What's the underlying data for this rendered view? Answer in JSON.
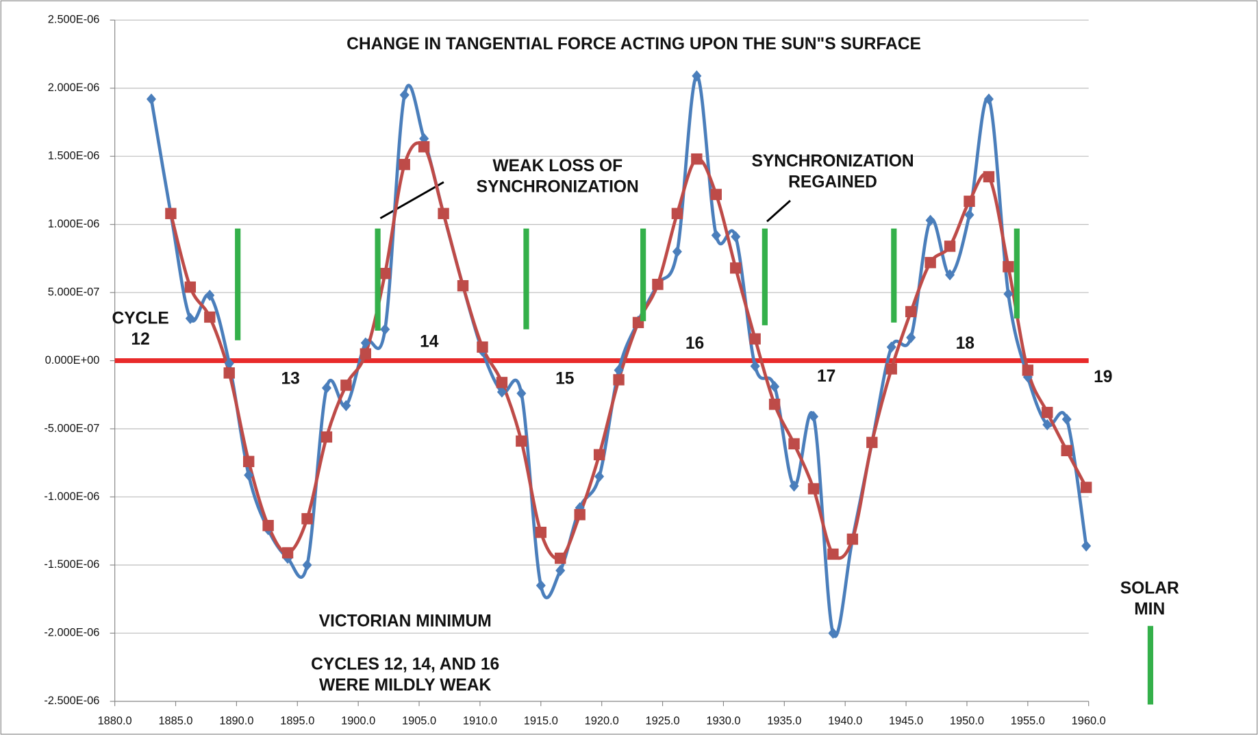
{
  "chart_data": {
    "type": "line",
    "title": "CHANGE IN TANGENTIAL FORCE ACTING UPON THE SUN\"S SURFACE",
    "x": [
      1883.0,
      1884.6,
      1886.2,
      1887.8,
      1889.4,
      1891.0,
      1892.6,
      1894.2,
      1895.8,
      1897.4,
      1899.0,
      1900.6,
      1902.2,
      1903.8,
      1905.4,
      1907.0,
      1908.6,
      1910.2,
      1911.8,
      1913.4,
      1915.0,
      1916.6,
      1918.2,
      1919.8,
      1921.4,
      1923.0,
      1924.6,
      1926.2,
      1927.8,
      1929.4,
      1931.0,
      1932.6,
      1934.2,
      1935.8,
      1937.4,
      1939.0,
      1940.6,
      1942.2,
      1943.8,
      1945.4,
      1947.0,
      1948.6,
      1950.2,
      1951.8,
      1953.4,
      1955.0,
      1956.6,
      1958.2,
      1959.8
    ],
    "series": [
      {
        "color": "#4a7ebb",
        "marker": "diamond",
        "values": [
          1.92e-06,
          1.08e-06,
          3.1e-07,
          4.8e-07,
          -2e-08,
          -8.4e-07,
          -1.24e-06,
          -1.45e-06,
          -1.5e-06,
          -2e-07,
          -3.3e-07,
          1.3e-07,
          2.3e-07,
          1.95e-06,
          1.63e-06,
          1.08e-06,
          5.5e-07,
          7e-08,
          -2.3e-07,
          -2.4e-07,
          -1.65e-06,
          -1.54e-06,
          -1.08e-06,
          -8.5e-07,
          -7e-08,
          2.9e-07,
          5.6e-07,
          8e-07,
          2.09e-06,
          9.2e-07,
          9.1e-07,
          -4e-08,
          -1.9e-07,
          -9.2e-07,
          -4.1e-07,
          -2e-06,
          -1.31e-06,
          -6e-07,
          1e-07,
          1.7e-07,
          1.03e-06,
          6.3e-07,
          1.07e-06,
          1.92e-06,
          4.9e-07,
          -1.2e-07,
          -4.7e-07,
          -4.3e-07,
          -1.36e-06
        ]
      },
      {
        "color": "#be4b48",
        "marker": "square",
        "values": [
          null,
          1.08e-06,
          5.4e-07,
          3.2e-07,
          -9e-08,
          -7.4e-07,
          -1.21e-06,
          -1.41e-06,
          -1.16e-06,
          -5.6e-07,
          -1.8e-07,
          5e-08,
          6.4e-07,
          1.44e-06,
          1.57e-06,
          1.08e-06,
          5.5e-07,
          1e-07,
          -1.6e-07,
          -5.9e-07,
          -1.26e-06,
          -1.45e-06,
          -1.13e-06,
          -6.9e-07,
          -1.4e-07,
          2.8e-07,
          5.6e-07,
          1.08e-06,
          1.48e-06,
          1.22e-06,
          6.8e-07,
          1.6e-07,
          -3.2e-07,
          -6.1e-07,
          -9.4e-07,
          -1.42e-06,
          -1.31e-06,
          -6e-07,
          -6e-08,
          3.6e-07,
          7.2e-07,
          8.4e-07,
          1.17e-06,
          1.35e-06,
          6.9e-07,
          -7e-08,
          -3.8e-07,
          -6.6e-07,
          -9.3e-07
        ]
      }
    ],
    "reference_line": {
      "value": 0,
      "color": "#e82a2a"
    },
    "solar_minima": {
      "color": "#34b04a",
      "top": 9.7e-07,
      "x": [
        1890.1,
        1901.6,
        1913.8,
        1923.4,
        1933.4,
        1944.0,
        1954.1
      ],
      "bottom": [
        1.5e-07,
        2.2e-07,
        2.3e-07,
        2.9e-07,
        2.6e-07,
        2.8e-07,
        3.1e-07
      ]
    },
    "xlim": [
      1880,
      1960
    ],
    "xticks": [
      {
        "value": 1880,
        "label": "1880.0"
      },
      {
        "value": 1885,
        "label": "1885.0"
      },
      {
        "value": 1890,
        "label": "1890.0"
      },
      {
        "value": 1895,
        "label": "1895.0"
      },
      {
        "value": 1900,
        "label": "1900.0"
      },
      {
        "value": 1905,
        "label": "1905.0"
      },
      {
        "value": 1910,
        "label": "1910.0"
      },
      {
        "value": 1915,
        "label": "1915.0"
      },
      {
        "value": 1920,
        "label": "1920.0"
      },
      {
        "value": 1925,
        "label": "1925.0"
      },
      {
        "value": 1930,
        "label": "1930.0"
      },
      {
        "value": 1935,
        "label": "1935.0"
      },
      {
        "value": 1940,
        "label": "1940.0"
      },
      {
        "value": 1945,
        "label": "1945.0"
      },
      {
        "value": 1950,
        "label": "1950.0"
      },
      {
        "value": 1955,
        "label": "1955.0"
      },
      {
        "value": 1960,
        "label": "1960.0"
      }
    ],
    "ylim": [
      -2.5e-06,
      2.5e-06
    ],
    "yticks": [
      {
        "value": -2.5e-06,
        "label": "-2.500E-06"
      },
      {
        "value": -2e-06,
        "label": "-2.000E-06"
      },
      {
        "value": -1.5e-06,
        "label": "-1.500E-06"
      },
      {
        "value": -1e-06,
        "label": "-1.000E-06"
      },
      {
        "value": -5e-07,
        "label": "-5.000E-07"
      },
      {
        "value": 0,
        "label": "0.000E+00"
      },
      {
        "value": 5e-07,
        "label": "5.000E-07"
      },
      {
        "value": 1e-06,
        "label": "1.000E-06"
      },
      {
        "value": 1.5e-06,
        "label": "1.500E-06"
      },
      {
        "value": 2e-06,
        "label": "2.000E-06"
      },
      {
        "value": 2.5e-06,
        "label": "2.500E-06"
      }
    ],
    "grid": true,
    "annotations": [
      [
        "WEAK LOSS OF",
        "SYNCHRONIZATION"
      ],
      [
        "SYNCHRONIZATION",
        "REGAINED"
      ],
      [
        "CYCLE",
        "12"
      ],
      [
        "13"
      ],
      [
        "14"
      ],
      [
        "15"
      ],
      [
        "16"
      ],
      [
        "17"
      ],
      [
        "18"
      ],
      [
        "19"
      ],
      [
        "VICTORIAN MINIMUM"
      ],
      [
        "CYCLES 12, 14, AND 16",
        "WERE MILDLY WEAK"
      ],
      [
        "SOLAR",
        "MIN"
      ]
    ]
  }
}
